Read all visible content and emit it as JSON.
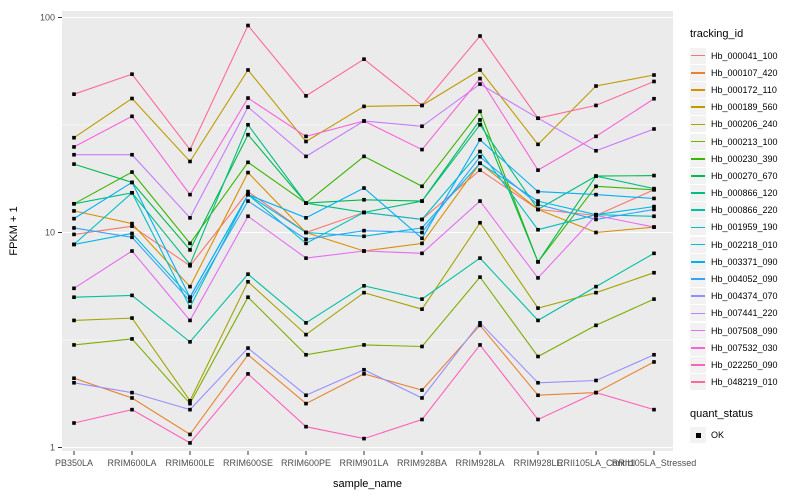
{
  "chart_data": {
    "type": "line",
    "xlabel": "sample_name",
    "ylabel": "FPKM + 1",
    "y_scale": "log10",
    "ylim": [
      1,
      100
    ],
    "y_major_ticks": [
      1,
      10,
      100
    ],
    "y_minor_ticks": [
      3.162,
      31.62
    ],
    "grid": "on",
    "panel_bg": "#EBEBEB",
    "grid_color": "#FFFFFF",
    "axis_text_color": "#4D4D4D",
    "tick_mark_color": "#333333",
    "marker": "filled-square",
    "marker_color": "#000000",
    "legend_position": "right",
    "legend_key_bg": "#F2F2F2",
    "legend": {
      "color_title": "tracking_id",
      "shape_title": "quant_status",
      "shape_items": [
        {
          "label": "OK",
          "marker": "filled-square",
          "color": "#000000"
        }
      ]
    },
    "x_categories": [
      "PB350LA",
      "RRIM600LA",
      "RRIM600LE",
      "RRIM600SE",
      "RRIM600PE",
      "RRIM901LA",
      "RRIM928BA",
      "RRIM928LA",
      "RRIM928LE",
      "RRII105LA_Control",
      "RRII105LA_Stressed"
    ],
    "series": [
      {
        "name": "Hb_000041_100",
        "color": "#F8766D",
        "values": [
          9.8,
          10.7,
          7.0,
          15.5,
          10.0,
          12.4,
          11.5,
          19.5,
          12.8,
          12.0,
          15.8
        ]
      },
      {
        "name": "Hb_000107_420",
        "color": "#EA8331",
        "values": [
          2.1,
          1.7,
          1.15,
          2.7,
          1.6,
          2.2,
          1.85,
          3.7,
          1.75,
          1.8,
          2.5
        ]
      },
      {
        "name": "Hb_000172_110",
        "color": "#D89000",
        "values": [
          12.6,
          11.0,
          5.6,
          19.0,
          10.0,
          8.2,
          8.9,
          21.0,
          12.8,
          10.0,
          10.6
        ]
      },
      {
        "name": "Hb_000189_560",
        "color": "#C09B00",
        "values": [
          27.6,
          42.0,
          21.4,
          57.0,
          26.5,
          38.6,
          39.0,
          57.0,
          25.7,
          48.0,
          54.0
        ]
      },
      {
        "name": "Hb_000206_240",
        "color": "#A3A500",
        "values": [
          3.9,
          4.0,
          1.65,
          5.9,
          3.35,
          5.25,
          4.4,
          11.1,
          4.45,
          5.25,
          6.5
        ]
      },
      {
        "name": "Hb_000213_100",
        "color": "#7CAE00",
        "values": [
          3.0,
          3.2,
          1.6,
          5.0,
          2.7,
          3.0,
          2.95,
          6.2,
          2.65,
          3.7,
          4.9
        ]
      },
      {
        "name": "Hb_000230_390",
        "color": "#39B600",
        "values": [
          13.6,
          19.1,
          8.9,
          21.2,
          13.7,
          22.6,
          16.4,
          36.6,
          7.3,
          16.4,
          15.8
        ]
      },
      {
        "name": "Hb_000270_670",
        "color": "#00BB4E",
        "values": [
          20.8,
          17.1,
          8.3,
          28.5,
          13.7,
          14.2,
          14.0,
          33.4,
          7.3,
          18.3,
          18.4
        ]
      },
      {
        "name": "Hb_000866_120",
        "color": "#00BF7D",
        "values": [
          13.6,
          15.3,
          7.1,
          31.7,
          13.7,
          12.4,
          14.0,
          31.7,
          12.8,
          18.3,
          16.0
        ]
      },
      {
        "name": "Hb_000866_220",
        "color": "#00C1A3",
        "values": [
          5.0,
          5.1,
          3.1,
          6.4,
          3.8,
          5.65,
          4.9,
          7.6,
          3.9,
          5.6,
          8.0
        ]
      },
      {
        "name": "Hb_001959_190",
        "color": "#00BFC4",
        "values": [
          8.8,
          15.3,
          4.5,
          15.0,
          8.9,
          12.4,
          11.5,
          23.8,
          10.3,
          12.1,
          11.9
        ]
      },
      {
        "name": "Hb_002218_010",
        "color": "#00BAE0",
        "values": [
          8.8,
          9.9,
          5.0,
          15.0,
          10.0,
          9.6,
          10.5,
          21.0,
          14.0,
          12.1,
          13.2
        ]
      },
      {
        "name": "Hb_003371_090",
        "color": "#00B0F6",
        "values": [
          11.6,
          17.1,
          5.0,
          15.0,
          11.7,
          16.1,
          9.4,
          27.0,
          15.5,
          15.0,
          14.4
        ]
      },
      {
        "name": "Hb_004052_090",
        "color": "#35A2FF",
        "values": [
          10.5,
          9.5,
          4.8,
          14.0,
          9.3,
          10.2,
          10.0,
          22.5,
          13.5,
          11.5,
          12.8
        ]
      },
      {
        "name": "Hb_004374_070",
        "color": "#9590FF",
        "values": [
          2.0,
          1.8,
          1.5,
          2.9,
          1.75,
          2.3,
          1.7,
          3.8,
          2.0,
          2.05,
          2.7
        ]
      },
      {
        "name": "Hb_007441_220",
        "color": "#C77CFF",
        "values": [
          23.0,
          23.0,
          11.7,
          38.3,
          22.6,
          33.0,
          31.2,
          49.0,
          34.0,
          24.0,
          30.3
        ]
      },
      {
        "name": "Hb_007508_090",
        "color": "#E76BF3",
        "values": [
          5.5,
          8.2,
          3.9,
          11.9,
          7.6,
          8.2,
          8.0,
          14.0,
          6.15,
          12.0,
          10.6
        ]
      },
      {
        "name": "Hb_007532_030",
        "color": "#FA62DB",
        "values": [
          25.0,
          34.7,
          15.0,
          42.2,
          28.0,
          33.0,
          24.3,
          52.0,
          19.5,
          28.0,
          41.9
        ]
      },
      {
        "name": "Hb_022250_090",
        "color": "#FF62BC",
        "values": [
          1.3,
          1.5,
          1.05,
          2.2,
          1.25,
          1.1,
          1.35,
          3.0,
          1.35,
          1.8,
          1.5
        ]
      },
      {
        "name": "Hb_048219_010",
        "color": "#FF6A98",
        "values": [
          44.0,
          54.5,
          24.3,
          91.8,
          43.2,
          64.0,
          39.0,
          82.0,
          34.0,
          39.0,
          50.4
        ]
      }
    ]
  }
}
